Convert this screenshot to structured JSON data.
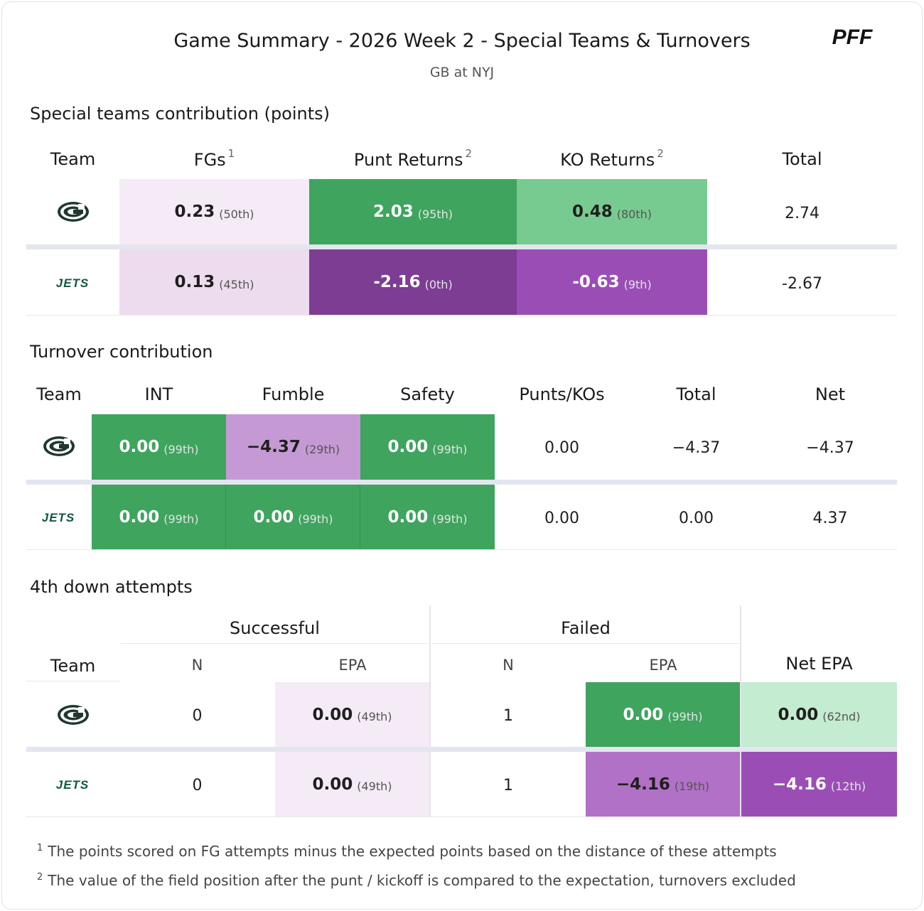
{
  "title": "Game Summary - 2026 Week 2 - Special Teams & Turnovers",
  "subtitle": "GB at NYJ",
  "logo_text": "PFF",
  "colors": {
    "green_dark": "#3ea45e",
    "green_mid": "#78cb90",
    "green_light": "#c4ecd0",
    "purple_dark": "#7c3d93",
    "purple_mid": "#9b4db6",
    "purple_mid2": "#b171c6",
    "purple_light": "#c59ad4",
    "lavender": "#f4ebf6",
    "lavender2": "#eddcee",
    "team_green": "#203731",
    "jets_green": "#125740"
  },
  "icons": {
    "gb": "packers-g-logo",
    "nyj": "jets-wordmark-logo"
  },
  "special_teams": {
    "title": "Special teams contribution (points)",
    "headers": {
      "team": "Team",
      "fgs": "FGs",
      "fgs_note": "1",
      "punt": "Punt Returns",
      "punt_note": "2",
      "ko": "KO Returns",
      "ko_note": "2",
      "total": "Total"
    },
    "rows": [
      {
        "team": "GB",
        "fgs": "0.23",
        "fgs_pct": "(50th)",
        "punt": "2.03",
        "punt_pct": "(95th)",
        "ko": "0.48",
        "ko_pct": "(80th)",
        "total": "2.74"
      },
      {
        "team": "NYJ",
        "fgs": "0.13",
        "fgs_pct": "(45th)",
        "punt": "-2.16",
        "punt_pct": "(0th)",
        "ko": "-0.63",
        "ko_pct": "(9th)",
        "total": "-2.67"
      }
    ]
  },
  "turnovers": {
    "title": "Turnover contribution",
    "headers": {
      "team": "Team",
      "int": "INT",
      "fumble": "Fumble",
      "safety": "Safety",
      "punts": "Punts/KOs",
      "total": "Total",
      "net": "Net"
    },
    "rows": [
      {
        "team": "GB",
        "int": "0.00",
        "int_pct": "(99th)",
        "fumble": "−4.37",
        "fumble_pct": "(29th)",
        "safety": "0.00",
        "safety_pct": "(99th)",
        "punts": "0.00",
        "total": "−4.37",
        "net": "−4.37"
      },
      {
        "team": "NYJ",
        "int": "0.00",
        "int_pct": "(99th)",
        "fumble": "0.00",
        "fumble_pct": "(99th)",
        "safety": "0.00",
        "safety_pct": "(99th)",
        "punts": "0.00",
        "total": "0.00",
        "net": "4.37"
      }
    ]
  },
  "fourth_down": {
    "title": "4th down attempts",
    "headers": {
      "successful": "Successful",
      "failed": "Failed",
      "team": "Team",
      "n": "N",
      "epa": "EPA",
      "net_epa": "Net EPA"
    },
    "rows": [
      {
        "team": "GB",
        "succ_n": "0",
        "succ_epa": "0.00",
        "succ_pct": "(49th)",
        "fail_n": "1",
        "fail_epa": "0.00",
        "fail_pct": "(99th)",
        "net": "0.00",
        "net_pct": "(62nd)"
      },
      {
        "team": "NYJ",
        "succ_n": "0",
        "succ_epa": "0.00",
        "succ_pct": "(49th)",
        "fail_n": "1",
        "fail_epa": "−4.16",
        "fail_pct": "(19th)",
        "net": "−4.16",
        "net_pct": "(12th)"
      }
    ]
  },
  "footnotes": [
    {
      "mark": "1",
      "text": "The points scored on FG attempts minus the expected points based on the distance of these attempts"
    },
    {
      "mark": "2",
      "text": "The value of the field position after the punt / kickoff is compared to the expectation, turnovers excluded"
    }
  ]
}
